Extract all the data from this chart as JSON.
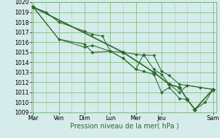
{
  "xlabel": "Pression niveau de la mer( hPa )",
  "ylim": [
    1009,
    1020
  ],
  "yticks": [
    1009,
    1010,
    1011,
    1012,
    1013,
    1014,
    1015,
    1016,
    1017,
    1018,
    1019,
    1020
  ],
  "x_tick_positions": [
    0,
    1,
    2,
    3,
    4,
    5,
    7
  ],
  "x_tick_labels": [
    "Mar",
    "Ven",
    "Dim",
    "Lun",
    "Mer",
    "Jeu",
    "Sam"
  ],
  "xlim": [
    -0.05,
    7.15
  ],
  "line1": {
    "x": [
      0,
      0.5,
      1.0,
      2.0,
      2.3,
      2.7,
      3.0,
      3.5,
      4.0,
      4.3,
      4.7,
      5.0,
      5.3,
      5.7,
      6.0,
      6.5,
      7.0
    ],
    "y": [
      1019.5,
      1019.0,
      1018.0,
      1017.1,
      1016.8,
      1016.6,
      1015.1,
      1015.0,
      1014.8,
      1014.7,
      1014.7,
      1013.1,
      1012.7,
      1011.8,
      1011.7,
      1011.5,
      1011.3
    ],
    "color": "#2d6a2d",
    "lw": 0.8,
    "marker": "D",
    "ms": 2.0
  },
  "line2": {
    "x": [
      0,
      1.0,
      2.0,
      2.3,
      3.0,
      3.5,
      4.0,
      4.3,
      4.7,
      5.0,
      5.3,
      5.7,
      6.0,
      7.0
    ],
    "y": [
      1019.5,
      1016.3,
      1015.5,
      1015.7,
      1015.1,
      1014.4,
      1013.3,
      1014.8,
      1013.3,
      1012.8,
      1011.8,
      1011.0,
      1011.7,
      1011.3
    ],
    "color": "#2d6a2d",
    "lw": 0.8,
    "marker": "D",
    "ms": 2.0
  },
  "line3": {
    "x": [
      0,
      1.0,
      2.0,
      2.3,
      3.0,
      3.5,
      4.0,
      4.3,
      4.7,
      5.0,
      5.3,
      5.7,
      6.0,
      6.3,
      6.7,
      7.0
    ],
    "y": [
      1019.5,
      1016.3,
      1015.8,
      1015.0,
      1015.1,
      1014.4,
      1013.3,
      1013.1,
      1012.8,
      1011.0,
      1011.5,
      1010.4,
      1010.3,
      1009.3,
      1010.0,
      1011.3
    ],
    "color": "#2d6a2d",
    "lw": 0.8,
    "marker": "D",
    "ms": 2.0
  },
  "line4": {
    "x": [
      0,
      3.5,
      4.7,
      5.3,
      5.7,
      6.0,
      6.3,
      7.0
    ],
    "y": [
      1019.5,
      1015.0,
      1013.0,
      1011.8,
      1011.5,
      1010.3,
      1009.3,
      1011.3
    ],
    "color": "#2d6a2d",
    "lw": 1.3,
    "marker": "D",
    "ms": 3.0
  },
  "bg_color": "#d6ecea",
  "grid_color": "#6aaa6a",
  "label_fontsize": 7.0,
  "tick_fontsize": 6.0
}
